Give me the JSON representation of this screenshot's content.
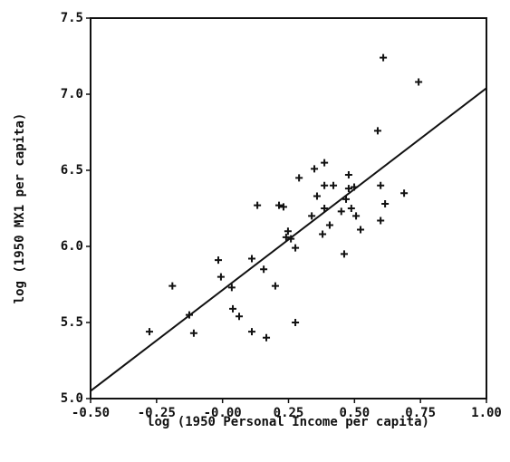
{
  "chart_data": {
    "type": "scatter",
    "x_label": "log (1950 Personal Income per capita)",
    "y_label": "log (1950 MX1 per capita)",
    "xlim": [
      -0.5,
      1.0
    ],
    "ylim": [
      5.0,
      7.5
    ],
    "xticks": [
      {
        "value": -0.5,
        "label": "-0.50"
      },
      {
        "value": -0.25,
        "label": "-0.25"
      },
      {
        "value": 0,
        "label": "-0.00"
      },
      {
        "value": 0.25,
        "label": "0.25"
      },
      {
        "value": 0.5,
        "label": "0.50"
      },
      {
        "value": 0.75,
        "label": "0.75"
      },
      {
        "value": 1.0,
        "label": "1.00"
      }
    ],
    "yticks": [
      {
        "value": 5.0,
        "label": "5.0"
      },
      {
        "value": 5.5,
        "label": "5.5"
      },
      {
        "value": 6.0,
        "label": "6.0"
      },
      {
        "value": 6.5,
        "label": "6.5"
      },
      {
        "value": 7.0,
        "label": "7.0"
      },
      {
        "value": 7.5,
        "label": "7.5"
      }
    ],
    "color": "#111111",
    "x": [
      -0.277,
      -0.19,
      -0.126,
      -0.109,
      -0.016,
      -0.006,
      0.035,
      0.039,
      0.063,
      0.111,
      0.111,
      0.132,
      0.156,
      0.166,
      0.2,
      0.214,
      0.231,
      0.248,
      0.259,
      0.276,
      0.276,
      0.29,
      0.241,
      0.338,
      0.348,
      0.358,
      0.386,
      0.386,
      0.379,
      0.386,
      0.406,
      0.42,
      0.45,
      0.461,
      0.468,
      0.478,
      0.478,
      0.488,
      0.499,
      0.506,
      0.523,
      0.588,
      0.599,
      0.599,
      0.616,
      0.609,
      0.688,
      0.743
    ],
    "values": [
      5.44,
      5.74,
      5.55,
      5.43,
      5.91,
      5.8,
      5.73,
      5.59,
      5.54,
      5.44,
      5.92,
      6.27,
      5.85,
      5.4,
      5.74,
      6.27,
      6.26,
      6.1,
      6.05,
      5.99,
      5.5,
      6.45,
      6.06,
      6.2,
      6.51,
      6.33,
      6.55,
      6.4,
      6.08,
      6.25,
      6.14,
      6.4,
      6.23,
      5.95,
      6.31,
      6.47,
      6.38,
      6.25,
      6.39,
      6.2,
      6.11,
      6.76,
      6.17,
      6.4,
      6.28,
      7.24,
      6.35,
      7.08
    ],
    "fit_line": {
      "x": [
        -0.5,
        1.0
      ],
      "values": [
        5.05,
        7.04
      ]
    }
  }
}
